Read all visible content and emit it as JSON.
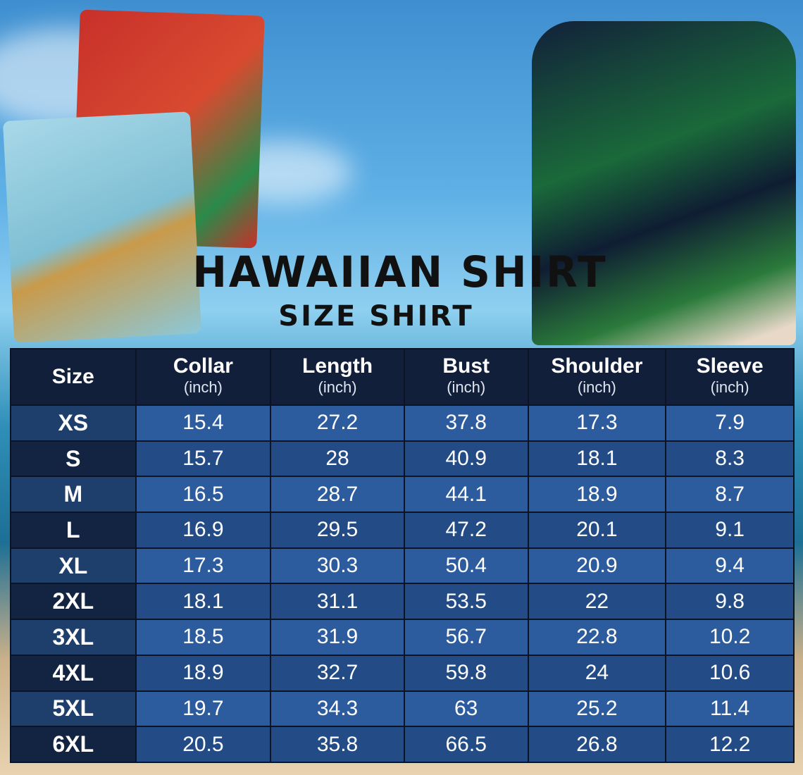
{
  "title": "HAWAIIAN SHIRT",
  "subtitle": "SIZE SHIRT",
  "colors": {
    "header_bg": "#121f3a",
    "row_light": "#2c5c9e",
    "row_dark": "#234c86",
    "size_col": "#132443"
  },
  "table": {
    "headers": [
      {
        "label": "Size",
        "unit": ""
      },
      {
        "label": "Collar",
        "unit": "(inch)"
      },
      {
        "label": "Length",
        "unit": "(inch)"
      },
      {
        "label": "Bust",
        "unit": "(inch)"
      },
      {
        "label": "Shoulder",
        "unit": "(inch)"
      },
      {
        "label": "Sleeve",
        "unit": "(inch)"
      }
    ],
    "rows": [
      [
        "XS",
        "15.4",
        "27.2",
        "37.8",
        "17.3",
        "7.9"
      ],
      [
        "S",
        "15.7",
        "28",
        "40.9",
        "18.1",
        "8.3"
      ],
      [
        "M",
        "16.5",
        "28.7",
        "44.1",
        "18.9",
        "8.7"
      ],
      [
        "L",
        "16.9",
        "29.5",
        "47.2",
        "20.1",
        "9.1"
      ],
      [
        "XL",
        "17.3",
        "30.3",
        "50.4",
        "20.9",
        "9.4"
      ],
      [
        "2XL",
        "18.1",
        "31.1",
        "53.5",
        "22",
        "9.8"
      ],
      [
        "3XL",
        "18.5",
        "31.9",
        "56.7",
        "22.8",
        "10.2"
      ],
      [
        "4XL",
        "18.9",
        "32.7",
        "59.8",
        "24",
        "10.6"
      ],
      [
        "5XL",
        "19.7",
        "34.3",
        "63",
        "25.2",
        "11.4"
      ],
      [
        "6XL",
        "20.5",
        "35.8",
        "66.5",
        "26.8",
        "12.2"
      ]
    ]
  }
}
